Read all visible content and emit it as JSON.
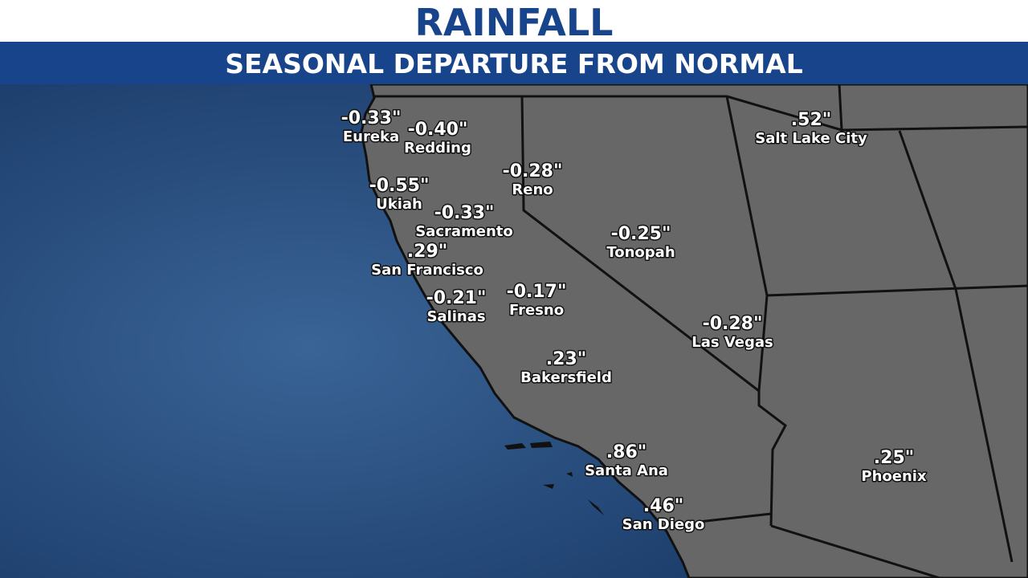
{
  "header": {
    "title": "RAINFALL",
    "subtitle": "SEASONAL DEPARTURE FROM NORMAL"
  },
  "cities": [
    {
      "name": "Eureka",
      "value": "-0.33\""
    },
    {
      "name": "Redding",
      "value": "-0.40\""
    },
    {
      "name": "Ukiah",
      "value": "-0.55\""
    },
    {
      "name": "Reno",
      "value": "-0.28\""
    },
    {
      "name": "Sacramento",
      "value": "-0.33\""
    },
    {
      "name": "San Francisco",
      "value": ".29\""
    },
    {
      "name": "Salinas",
      "value": "-0.21\""
    },
    {
      "name": "Fresno",
      "value": "-0.17\""
    },
    {
      "name": "Tonopah",
      "value": "-0.25\""
    },
    {
      "name": "Las Vegas",
      "value": "-0.28\""
    },
    {
      "name": "Bakersfield",
      "value": ".23\""
    },
    {
      "name": "Salt Lake City",
      "value": ".52\""
    },
    {
      "name": "Santa Ana",
      "value": ".86\""
    },
    {
      "name": "San Diego",
      "value": ".46\""
    },
    {
      "name": "Phoenix",
      "value": ".25\""
    }
  ]
}
